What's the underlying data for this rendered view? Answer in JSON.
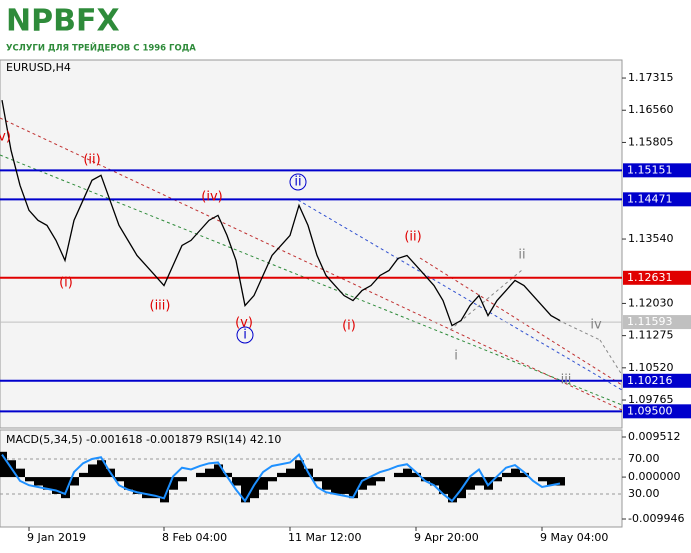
{
  "header": {
    "logo": "NPBFX",
    "tagline": "УСЛУГИ ДЛЯ ТРЕЙДЕРОВ С 1996 ГОДА"
  },
  "chart_data": [
    {
      "type": "line",
      "title": "EURUSD,H4",
      "color": "#000000",
      "categories": [
        null,
        null,
        null,
        "9 Jan 2019",
        null,
        null,
        null,
        null,
        null,
        null,
        null,
        null,
        null,
        null,
        null,
        null,
        null,
        null,
        "8 Feb 04:00",
        null,
        null,
        null,
        null,
        null,
        null,
        null,
        null,
        null,
        null,
        null,
        null,
        null,
        "11 Mar 12:00",
        null,
        null,
        null,
        null,
        null,
        null,
        null,
        null,
        null,
        null,
        null,
        null,
        null,
        "9 Apr 20:00",
        null,
        null,
        null,
        null,
        null,
        null,
        null,
        null,
        null,
        null,
        null,
        null,
        null,
        "9 May 04:00",
        null,
        null
      ],
      "values": [
        1.16798,
        1.15623,
        1.148,
        1.14213,
        1.13978,
        1.1386,
        1.13508,
        1.13038,
        1.13978,
        1.14448,
        1.14918,
        1.15035,
        1.14448,
        1.1386,
        1.13508,
        1.13155,
        1.1292,
        1.12685,
        1.1245,
        1.1292,
        1.1339,
        1.13508,
        1.13743,
        1.13978,
        1.14095,
        1.13625,
        1.13038,
        1.1198,
        1.12215,
        1.12685,
        1.13155,
        1.1339,
        1.13625,
        1.1433,
        1.1386,
        1.13155,
        1.12685,
        1.1245,
        1.12215,
        1.12098,
        1.12333,
        1.1245,
        1.12685,
        1.12803,
        1.13085,
        1.13155,
        1.1292,
        1.12685,
        1.1245,
        1.12098,
        1.1151,
        1.11628,
        1.1198,
        1.12215,
        1.11745,
        1.12098,
        1.12333,
        1.12568,
        1.1245,
        1.12215,
        1.1198,
        1.11745,
        1.11628
      ],
      "ylim": [
        1.17738,
        1.09109
      ],
      "yticks": [
        1.17315,
        {
          "value": 1.1656,
          "label": "1.16560"
        },
        1.15805,
        {
          "value": 1.1354,
          "label": "1.13540"
        },
        {
          "value": 1.1203,
          "label": "1.12030"
        },
        1.11275,
        {
          "value": 1.1052,
          "label": "1.10520"
        },
        1.09765
      ],
      "levels": [
        {
          "value": 1.15151,
          "color": "#0000cc"
        },
        {
          "value": 1.14471,
          "color": "#0000cc"
        },
        {
          "value": 1.12631,
          "color": "#e00000"
        },
        {
          "value": 1.11593,
          "color": "#c0c0c0"
        },
        {
          "value": 1.10216,
          "color": "#0000cc"
        },
        {
          "value": 1.095,
          "label": "1.09500",
          "color": "#0000cc"
        }
      ],
      "annotations": [
        {
          "text": "(v)",
          "color": "#e00000"
        },
        {
          "text": "(ii)",
          "color": "#e00000"
        },
        {
          "text": "(iv)",
          "color": "#e00000"
        },
        {
          "text": "ii",
          "color": "#0000cc",
          "circled": true
        },
        {
          "text": "(ii)",
          "color": "#e00000"
        },
        {
          "text": "ii",
          "color": "#808080"
        },
        {
          "text": "(i)",
          "color": "#e00000"
        },
        {
          "text": "(iii)",
          "color": "#e00000"
        },
        {
          "text": "(v)",
          "color": "#e00000"
        },
        {
          "text": "i",
          "color": "#0000cc",
          "circled": true
        },
        {
          "text": "(i)",
          "color": "#e00000"
        },
        {
          "text": "i",
          "color": "#808080"
        },
        {
          "text": "iv",
          "color": "#808080"
        },
        {
          "text": "iii",
          "color": "#808080"
        }
      ]
    },
    {
      "type": "bar",
      "title": "MACD(5,34,5) -0.001618 -0.001879 RSI(14) 42.10",
      "color": "#000000",
      "values": [
        0.006,
        0.004,
        0.002,
        -0.001,
        -0.002,
        -0.003,
        -0.004,
        -0.005,
        -0.002,
        0.001,
        0.003,
        0.004,
        0.002,
        -0.001,
        -0.003,
        -0.004,
        -0.005,
        -0.005,
        -0.006,
        -0.003,
        -0.001,
        0,
        0.001,
        0.002,
        0.003,
        0.001,
        -0.002,
        -0.006,
        -0.005,
        -0.003,
        -0.001,
        0.001,
        0.002,
        0.004,
        0.002,
        -0.001,
        -0.003,
        -0.004,
        -0.004,
        -0.005,
        -0.003,
        -0.002,
        -0.001,
        0,
        0.001,
        0.002,
        0.001,
        -0.001,
        -0.002,
        -0.004,
        -0.006,
        -0.005,
        -0.003,
        -0.002,
        -0.003,
        -0.001,
        0.001,
        0.002,
        0.001,
        0,
        -0.001,
        -0.002,
        -0.002
      ],
      "series": [
        {
          "color": "#1e90ff",
          "axis": "y2",
          "values": [
            75,
            60,
            45,
            40,
            38,
            36,
            34,
            30,
            55,
            65,
            70,
            72,
            55,
            40,
            35,
            32,
            30,
            28,
            25,
            50,
            60,
            58,
            62,
            65,
            66,
            50,
            35,
            22,
            40,
            55,
            62,
            64,
            66,
            75,
            55,
            38,
            32,
            30,
            28,
            26,
            45,
            50,
            55,
            58,
            62,
            64,
            55,
            45,
            40,
            30,
            22,
            35,
            50,
            58,
            40,
            50,
            60,
            63,
            55,
            45,
            38,
            40,
            42
          ]
        }
      ],
      "ylim": [
        -0.009946,
        0.009512
      ],
      "yticks": [
        0.009512,
        {
          "value": 0,
          "label": "0.000000"
        },
        -0.009946
      ],
      "y2lim": [
        1.4,
        95.1
      ],
      "y2ticks": [
        {
          "value": 70,
          "label": "70.00"
        },
        {
          "value": 30,
          "label": "30.00"
        }
      ]
    }
  ]
}
